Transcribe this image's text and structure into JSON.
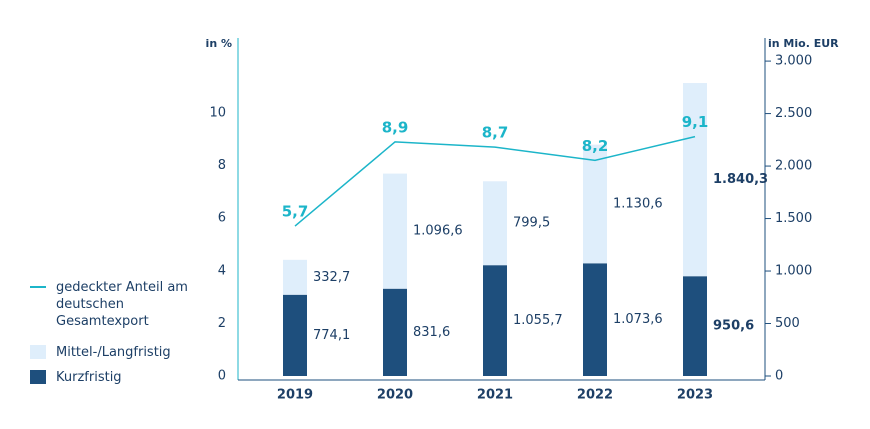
{
  "chart_data": {
    "type": "bar",
    "stacked": true,
    "categories": [
      "2019",
      "2020",
      "2021",
      "2022",
      "2023"
    ],
    "ylabel": "in %",
    "y2label": "in Mio. EUR",
    "ylim": [
      0,
      12.85
    ],
    "yticks": [
      0,
      2,
      4,
      6,
      8,
      10
    ],
    "y2lim": [
      0,
      3220
    ],
    "y2ticks": [
      0,
      500,
      {
        "value": 1000,
        "label": "1.000"
      },
      {
        "value": 1500,
        "label": "1.500"
      },
      {
        "value": 2000,
        "label": "2.000"
      },
      {
        "value": 2500,
        "label": "2.500"
      },
      {
        "value": 3000,
        "label": "3.000"
      }
    ],
    "series": [
      {
        "name": "Kurzfristig",
        "color": "#1e4f7d",
        "axis": "y2",
        "values": [
          774.1,
          831.6,
          1055.7,
          1073.6,
          950.6
        ],
        "value_labels": [
          "774,1",
          "831,6",
          "1.055,7",
          "1.073,6",
          "950,6"
        ]
      },
      {
        "name": "Mittel-/Langfristig",
        "color": "#dfeefb",
        "axis": "y2",
        "values": [
          332.7,
          1096.6,
          799.5,
          1130.6,
          1840.3
        ],
        "value_labels": [
          "332,7",
          "1.096,6",
          "799,5",
          "1.130,6",
          "1.840,3"
        ]
      },
      {
        "name": "gedeckter Anteil am deutschen Gesamtexport",
        "type": "line",
        "color": "#1cb5c9",
        "values": [
          5.7,
          8.9,
          8.7,
          8.2,
          9.1
        ],
        "value_labels": [
          "5,7",
          "8,9",
          "8,7",
          "8,2",
          "9,1"
        ]
      }
    ]
  }
}
